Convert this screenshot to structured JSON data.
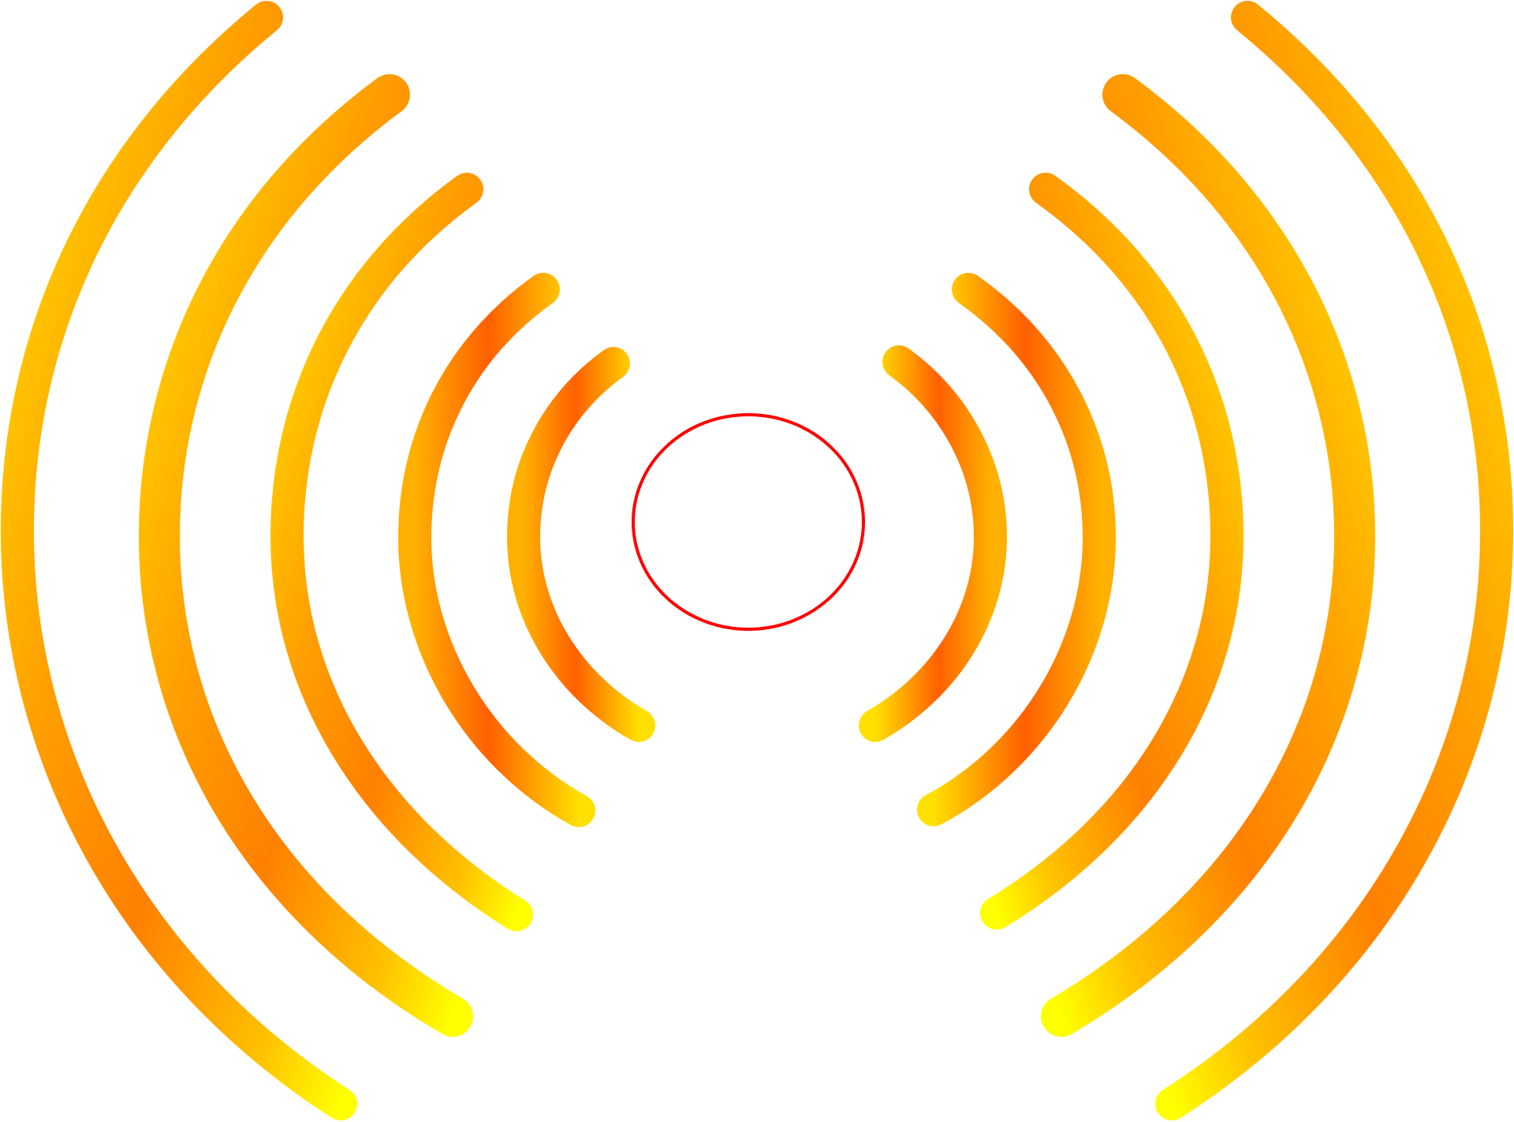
{
  "illustration": {
    "subject": "radio-signal-waves",
    "colors": {
      "wave_outer": "#ffff00",
      "wave_mid": "#ffb000",
      "wave_inner": "#ff7a00",
      "wave_hot": "#ff5a00",
      "source_ring": "#ff0000",
      "background": "#ffffff"
    },
    "wave_pairs": 5
  }
}
